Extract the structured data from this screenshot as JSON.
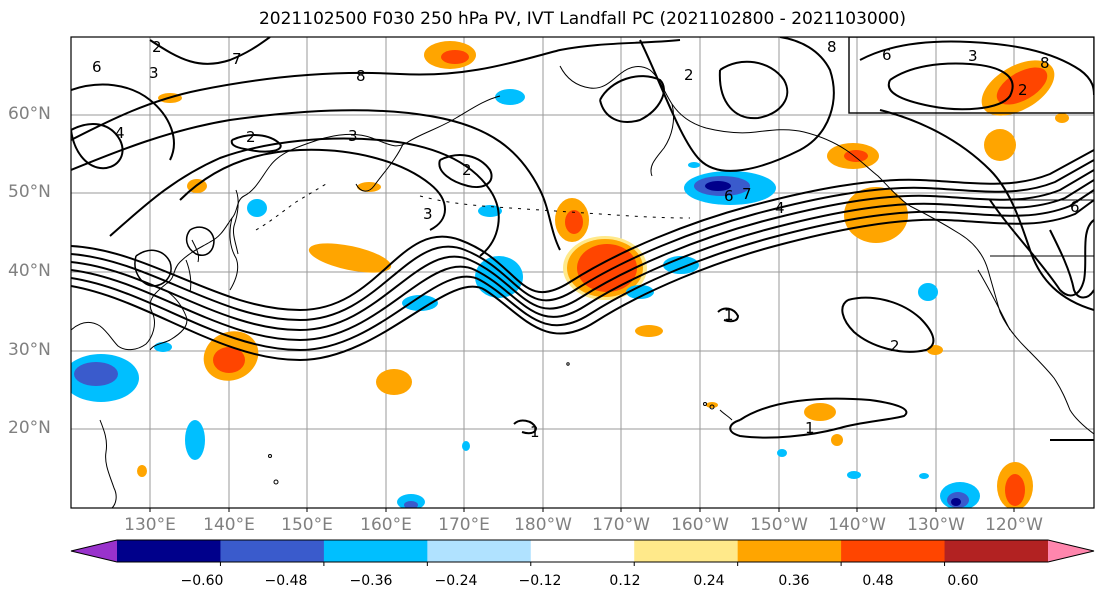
{
  "title": "2021102500 F030 250 hPa PV, IVT Landfall PC (2021102800 - 2021103000)",
  "lat_labels": [
    "60°N",
    "50°N",
    "40°N",
    "30°N",
    "20°N"
  ],
  "lon_labels": [
    "130°E",
    "140°E",
    "150°E",
    "160°E",
    "170°E",
    "180°W",
    "170°W",
    "160°W",
    "150°W",
    "140°W",
    "130°W",
    "120°W"
  ],
  "colorbar": {
    "colors": [
      "#9932cc",
      "#00008b",
      "#3a5bcc",
      "#00bfff",
      "#b0e2ff",
      "#ffffff",
      "#ffe98a",
      "#ffa500",
      "#ff4500",
      "#b22222",
      "#ff86ad"
    ],
    "tick_labels": [
      "−0.60",
      "−0.48",
      "−0.36",
      "−0.24",
      "−0.12",
      "0.12",
      "0.24",
      "0.36",
      "0.48",
      "0.60"
    ]
  },
  "contour_labels": [
    "6",
    "2",
    "3",
    "8",
    "7",
    "2",
    "3",
    "2",
    "3",
    "4",
    "8",
    "2",
    "8",
    "6",
    "3",
    "2",
    "6",
    "7",
    "4",
    "2",
    "1",
    "1",
    "1",
    "6"
  ]
}
